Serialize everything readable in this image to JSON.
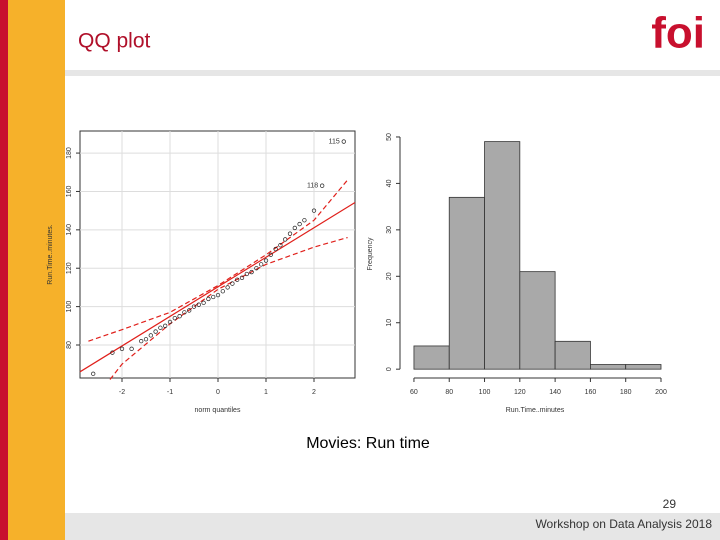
{
  "header": {
    "title": "QQ plot",
    "logo": "foi"
  },
  "chart_data": [
    {
      "type": "qq",
      "xlabel": "norm quantiles",
      "ylabel": "Run.Time..minutes.",
      "x": [
        -2.6,
        -2.2,
        -2.0,
        -1.8,
        -1.6,
        -1.5,
        -1.4,
        -1.3,
        -1.2,
        -1.1,
        -1.0,
        -0.9,
        -0.8,
        -0.7,
        -0.6,
        -0.5,
        -0.4,
        -0.3,
        -0.2,
        -0.1,
        0,
        0.1,
        0.2,
        0.3,
        0.4,
        0.5,
        0.6,
        0.7,
        0.8,
        0.9,
        1.0,
        1.1,
        1.2,
        1.3,
        1.4,
        1.5,
        1.6,
        1.7,
        1.8,
        2.0,
        2.17,
        2.62
      ],
      "values": [
        65,
        76,
        78,
        78,
        82,
        83,
        85,
        87,
        89,
        90,
        92,
        94,
        95,
        97,
        98,
        100,
        101,
        102,
        104,
        105,
        106,
        108,
        110,
        112,
        114,
        115,
        117,
        118,
        120,
        122,
        124,
        127,
        130,
        132,
        135,
        138,
        141,
        143,
        145,
        150,
        163,
        186
      ],
      "point_labels": [
        null,
        null,
        null,
        null,
        null,
        null,
        null,
        null,
        null,
        null,
        null,
        null,
        null,
        null,
        null,
        null,
        null,
        null,
        null,
        null,
        null,
        null,
        null,
        null,
        null,
        null,
        null,
        null,
        null,
        null,
        null,
        null,
        null,
        null,
        null,
        null,
        null,
        null,
        null,
        null,
        "118",
        "115"
      ],
      "color": "#222222",
      "line_color": "#e0201b",
      "line": {
        "intercept": 110.3,
        "slope": 15.4
      },
      "bands": [
        {
          "x": [
            -2.7,
            -2,
            -1,
            0,
            1,
            2,
            2.7
          ],
          "values": [
            82,
            88,
            97,
            111,
            127,
            145,
            166
          ]
        },
        {
          "x": [
            -2.25,
            -2,
            -1,
            0,
            1,
            2,
            2.7
          ],
          "values": [
            62,
            70,
            91,
            109,
            122,
            131,
            136
          ]
        }
      ],
      "xlim": [
        -2.875,
        2.854
      ],
      "ylim": [
        62.8,
        191.5
      ],
      "xticks": [
        -2,
        -1,
        0,
        1,
        2
      ],
      "yticks": [
        80,
        100,
        120,
        140,
        160,
        180
      ],
      "grid": true
    },
    {
      "type": "histogram",
      "xlabel": "Run.Time..minutes",
      "ylabel": "Frequency",
      "bins": [
        60,
        80,
        100,
        120,
        140,
        160,
        180,
        200
      ],
      "values": [
        5,
        37,
        49,
        21,
        6,
        1,
        1
      ],
      "color": "#a9a9a9",
      "xlim": [
        52.1,
        205.1
      ],
      "ylim": [
        -1.9,
        51.5
      ],
      "xticks": [
        60,
        80,
        100,
        120,
        140,
        160,
        180,
        200
      ],
      "yticks": [
        0,
        10,
        20,
        30,
        40,
        50
      ],
      "grid": false
    }
  ],
  "caption": "Movies: Run time",
  "footer": {
    "page": "29",
    "text": "Workshop on Data Analysis 2018"
  }
}
